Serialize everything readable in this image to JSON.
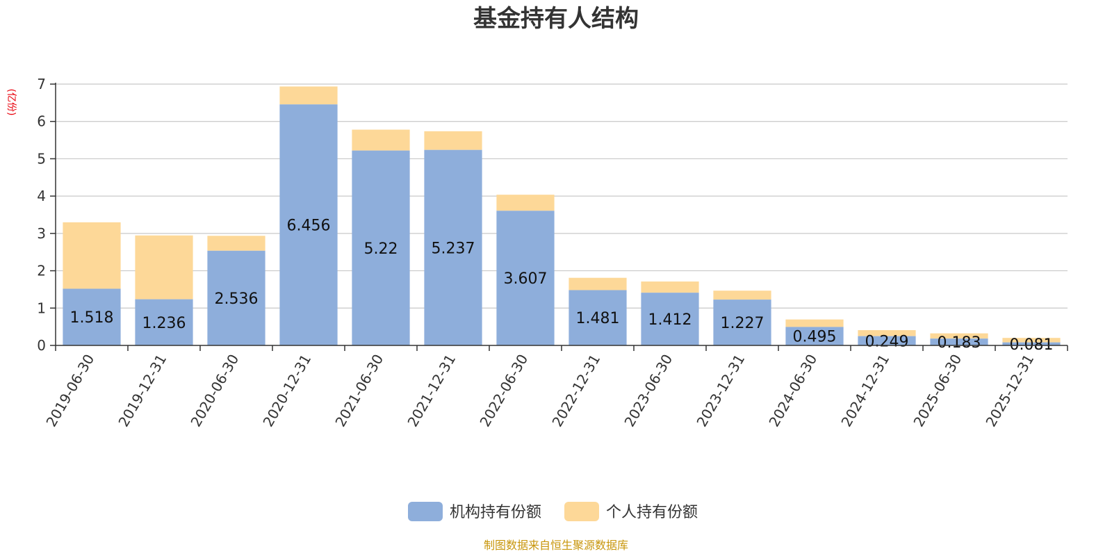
{
  "chart_data": {
    "type": "bar",
    "stacked": true,
    "title": "基金持有人结构",
    "unit_label": "(亿份)",
    "categories": [
      "2019-06-30",
      "2019-12-31",
      "2020-06-30",
      "2020-12-31",
      "2021-06-30",
      "2021-12-31",
      "2022-06-30",
      "2022-12-31",
      "2023-06-30",
      "2023-12-31",
      "2024-06-30",
      "2024-12-31",
      "2025-06-30",
      "2025-12-31"
    ],
    "series": [
      {
        "name": "机构持有份额",
        "color": "#8eaedb",
        "values": [
          1.518,
          1.236,
          2.536,
          6.456,
          5.22,
          5.237,
          3.607,
          1.481,
          1.412,
          1.227,
          0.495,
          0.249,
          0.183,
          0.081
        ],
        "labels": [
          "1.518",
          "1.236",
          "2.536",
          "6.456",
          "5.22",
          "5.237",
          "3.607",
          "1.481",
          "1.412",
          "1.227",
          "0.495",
          "0.249",
          "0.183",
          "0.081"
        ]
      },
      {
        "name": "个人持有份额",
        "color": "#fdd898",
        "values": [
          1.78,
          1.71,
          0.4,
          0.48,
          0.56,
          0.5,
          0.43,
          0.33,
          0.3,
          0.24,
          0.2,
          0.16,
          0.14,
          0.12
        ]
      }
    ],
    "ylim": [
      0,
      7
    ],
    "yticks": [
      "0",
      "1",
      "2",
      "3",
      "4",
      "5",
      "6",
      "7"
    ],
    "grid": true,
    "legend_position": "bottom-center"
  },
  "source_text": "制图数据来自恒生聚源数据库"
}
